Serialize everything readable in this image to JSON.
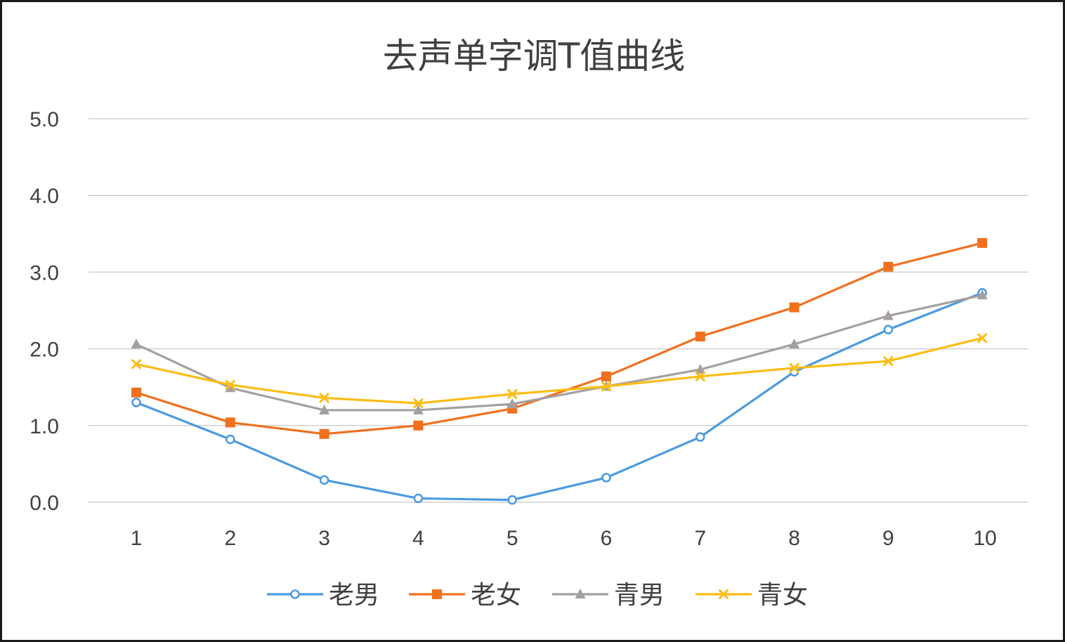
{
  "chart_data": {
    "type": "line",
    "title": "去声单字调T值曲线",
    "xlabel": "",
    "ylabel": "",
    "categories": [
      "1",
      "2",
      "3",
      "4",
      "5",
      "6",
      "7",
      "8",
      "9",
      "10"
    ],
    "ylim": [
      0,
      5
    ],
    "yticks": [
      "0.0",
      "1.0",
      "2.0",
      "3.0",
      "4.0",
      "5.0"
    ],
    "grid": true,
    "legend_position": "bottom",
    "series": [
      {
        "name": "老男",
        "color": "#4a9ae0",
        "marker": "circle-open",
        "values": [
          1.3,
          0.82,
          0.29,
          0.05,
          0.03,
          0.32,
          0.85,
          1.7,
          2.25,
          2.73
        ]
      },
      {
        "name": "老女",
        "color": "#f0701e",
        "marker": "square",
        "values": [
          1.43,
          1.04,
          0.89,
          1.0,
          1.22,
          1.64,
          2.16,
          2.54,
          3.07,
          3.38
        ]
      },
      {
        "name": "青男",
        "color": "#a5a0a0",
        "marker": "triangle",
        "values": [
          2.06,
          1.49,
          1.2,
          1.2,
          1.28,
          1.51,
          1.73,
          2.06,
          2.43,
          2.7
        ]
      },
      {
        "name": "青女",
        "color": "#fbbd13",
        "marker": "x",
        "values": [
          1.8,
          1.53,
          1.36,
          1.29,
          1.41,
          1.51,
          1.64,
          1.75,
          1.84,
          2.14
        ]
      }
    ]
  }
}
